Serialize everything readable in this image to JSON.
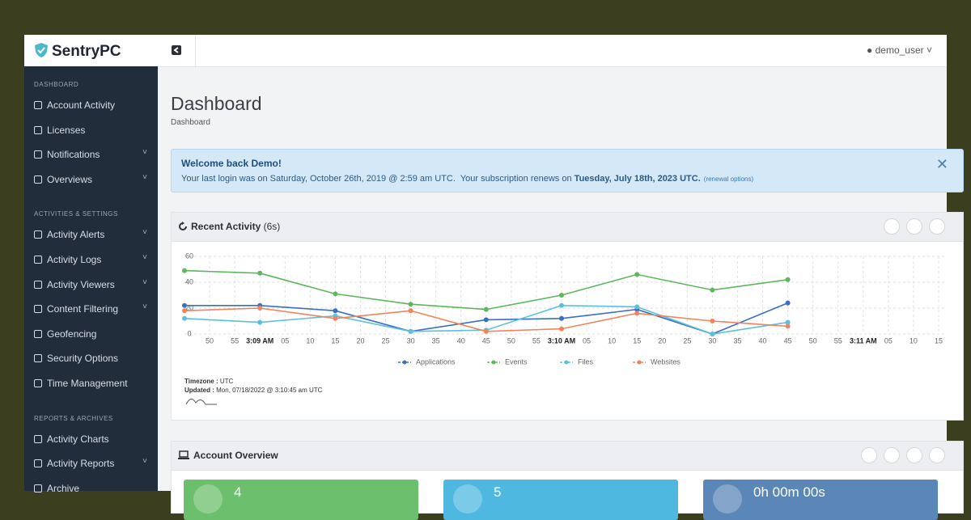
{
  "brand": "SentryPC",
  "user": "demo_user",
  "sidebar": [
    {
      "heading": "DASHBOARD",
      "items": [
        {
          "label": "Account Activity",
          "chevron": false
        },
        {
          "label": "Licenses",
          "chevron": false
        },
        {
          "label": "Notifications",
          "chevron": true
        },
        {
          "label": "Overviews",
          "chevron": true
        }
      ]
    },
    {
      "heading": "ACTIVITIES & SETTINGS",
      "items": [
        {
          "label": "Activity Alerts",
          "chevron": true
        },
        {
          "label": "Activity Logs",
          "chevron": true
        },
        {
          "label": "Activity Viewers",
          "chevron": true
        },
        {
          "label": "Content Filtering",
          "chevron": true
        },
        {
          "label": "Geofencing",
          "chevron": false
        },
        {
          "label": "Security Options",
          "chevron": false
        },
        {
          "label": "Time Management",
          "chevron": false
        }
      ]
    },
    {
      "heading": "REPORTS & ARCHIVES",
      "items": [
        {
          "label": "Activity Charts",
          "chevron": false
        },
        {
          "label": "Activity Reports",
          "chevron": true
        },
        {
          "label": "Archive",
          "chevron": false
        }
      ]
    }
  ],
  "page": {
    "title": "Dashboard",
    "breadcrumb": "Dashboard"
  },
  "alert": {
    "title": "Welcome back Demo!",
    "message": "Your last login was on Saturday, October 26th, 2019 @ 2:59 am UTC.  Your subscription renews on",
    "renewal_date": "Tuesday, July 18th, 2023 UTC.",
    "link": "(renewal options)"
  },
  "recent_activity": {
    "title": "Recent Activity",
    "interval": "(6s)",
    "timezone_label": "Timezone :",
    "timezone": "UTC",
    "updated_label": "Updated :",
    "updated": "Mon, 07/18/2022 @ 3:10:45 am UTC"
  },
  "chart_data": {
    "type": "line",
    "x": [
      -15,
      0,
      15,
      30,
      45,
      60,
      75,
      90,
      105
    ],
    "xlim": [
      -15,
      135
    ],
    "xticks": [
      {
        "value": -10,
        "label": "50"
      },
      {
        "value": -5,
        "label": "55"
      },
      {
        "value": 0,
        "label": "3:09 AM"
      },
      {
        "value": 5,
        "label": "05"
      },
      {
        "value": 10,
        "label": "10"
      },
      {
        "value": 15,
        "label": "15"
      },
      {
        "value": 20,
        "label": "20"
      },
      {
        "value": 25,
        "label": "25"
      },
      {
        "value": 30,
        "label": "30"
      },
      {
        "value": 35,
        "label": "35"
      },
      {
        "value": 40,
        "label": "40"
      },
      {
        "value": 45,
        "label": "45"
      },
      {
        "value": 50,
        "label": "50"
      },
      {
        "value": 55,
        "label": "55"
      },
      {
        "value": 60,
        "label": "3:10 AM"
      },
      {
        "value": 65,
        "label": "05"
      },
      {
        "value": 70,
        "label": "10"
      },
      {
        "value": 75,
        "label": "15"
      },
      {
        "value": 80,
        "label": "20"
      },
      {
        "value": 85,
        "label": "25"
      },
      {
        "value": 90,
        "label": "30"
      },
      {
        "value": 95,
        "label": "35"
      },
      {
        "value": 100,
        "label": "40"
      },
      {
        "value": 105,
        "label": "45"
      },
      {
        "value": 110,
        "label": "50"
      },
      {
        "value": 115,
        "label": "55"
      },
      {
        "value": 120,
        "label": "3:11 AM"
      },
      {
        "value": 125,
        "label": "05"
      },
      {
        "value": 130,
        "label": "10"
      },
      {
        "value": 135,
        "label": "15"
      }
    ],
    "ylim": [
      0,
      60
    ],
    "yticks": [
      0,
      20,
      40,
      60
    ],
    "grid": true,
    "series": [
      {
        "name": "Applications",
        "color": "#3a6fc4",
        "values": [
          22,
          22,
          18,
          2,
          11,
          12,
          19,
          0,
          24
        ]
      },
      {
        "name": "Events",
        "color": "#5cb85c",
        "values": [
          49,
          47,
          31,
          23,
          19,
          30,
          46,
          34,
          42
        ]
      },
      {
        "name": "Files",
        "color": "#5bc0de",
        "values": [
          12,
          9,
          14,
          2,
          3,
          22,
          21,
          0,
          9
        ]
      },
      {
        "name": "Websites",
        "color": "#f0845c",
        "values": [
          18,
          20,
          12,
          18,
          2,
          4,
          16,
          10,
          6
        ]
      }
    ]
  },
  "account_overview": {
    "title": "Account Overview",
    "cards": [
      {
        "value": 4,
        "color": "#6cbf6c"
      },
      {
        "value": 5,
        "color": "#4fb8e0"
      },
      {
        "value": "0h 00m 00s",
        "color": "#5b86b8"
      }
    ]
  }
}
